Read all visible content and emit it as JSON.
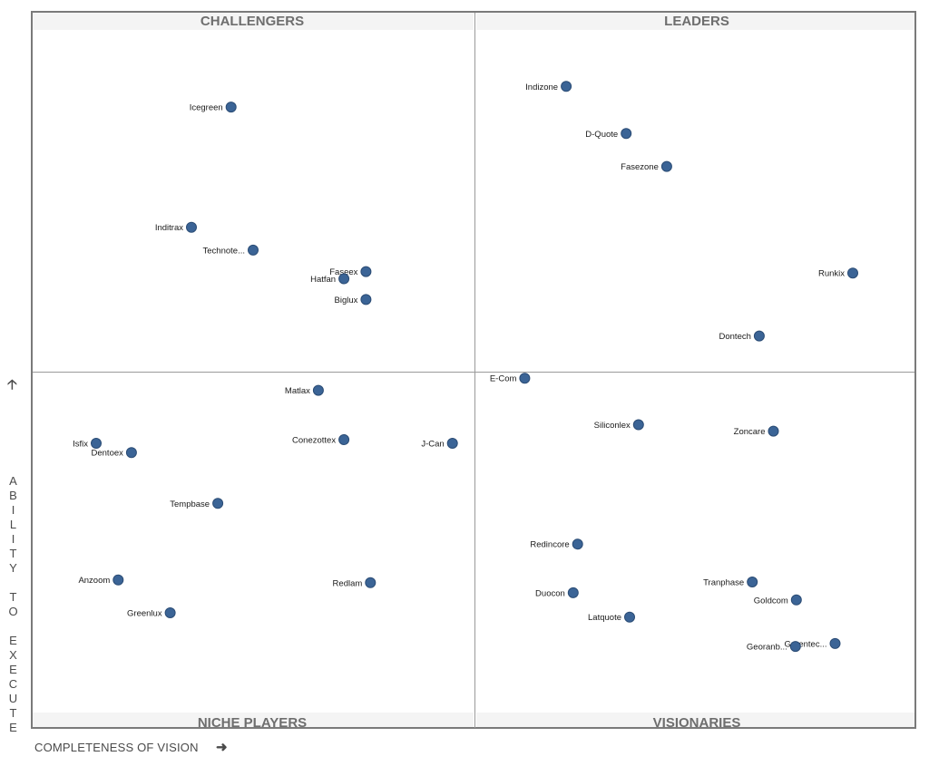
{
  "chart_data": {
    "type": "scatter",
    "quadrants": {
      "top_left": "CHALLENGERS",
      "top_right": "LEADERS",
      "bottom_left": "NICHE PLAYERS",
      "bottom_right": "VISIONARIES"
    },
    "xlabel": "COMPLETENESS OF VISION",
    "ylabel": "ABILITY TO EXECUTE",
    "xlim": [
      0,
      100
    ],
    "ylim": [
      0,
      100
    ],
    "grid": false,
    "colors": {
      "point": "#3b6496",
      "point_stroke": "#2b4c75",
      "frame": "#7a7a7a",
      "divider": "#9a9a9a",
      "title_band": "#f4f4f4"
    },
    "points": [
      {
        "name": "Icegreen",
        "x": 22.5,
        "y": 86.8
      },
      {
        "name": "Inditrax",
        "x": 18.0,
        "y": 70.0
      },
      {
        "name": "Technote...",
        "x": 25.0,
        "y": 66.8
      },
      {
        "name": "Faseex",
        "x": 37.8,
        "y": 63.8
      },
      {
        "name": "Hatfan",
        "x": 35.3,
        "y": 62.8
      },
      {
        "name": "Biglux",
        "x": 37.8,
        "y": 59.9
      },
      {
        "name": "Indizone",
        "x": 60.5,
        "y": 89.7
      },
      {
        "name": "D-Quote",
        "x": 67.3,
        "y": 83.1
      },
      {
        "name": "Fasezone",
        "x": 71.9,
        "y": 78.5
      },
      {
        "name": "Runkix",
        "x": 93.0,
        "y": 63.6
      },
      {
        "name": "Dontech",
        "x": 82.4,
        "y": 54.8
      },
      {
        "name": "Matlax",
        "x": 32.4,
        "y": 47.2
      },
      {
        "name": "Isfix",
        "x": 7.2,
        "y": 39.8
      },
      {
        "name": "Dentoex",
        "x": 11.2,
        "y": 38.5
      },
      {
        "name": "Conezottex",
        "x": 35.3,
        "y": 40.3
      },
      {
        "name": "J-Can",
        "x": 47.6,
        "y": 39.8
      },
      {
        "name": "Tempbase",
        "x": 21.0,
        "y": 31.4
      },
      {
        "name": "Anzoom",
        "x": 9.7,
        "y": 20.7
      },
      {
        "name": "Redlam",
        "x": 38.3,
        "y": 20.3
      },
      {
        "name": "Greenlux",
        "x": 15.6,
        "y": 16.1
      },
      {
        "name": "E-Com",
        "x": 55.8,
        "y": 48.9
      },
      {
        "name": "Siliconlex",
        "x": 68.7,
        "y": 42.4
      },
      {
        "name": "Zoncare",
        "x": 84.0,
        "y": 41.5
      },
      {
        "name": "Redincore",
        "x": 61.8,
        "y": 25.7
      },
      {
        "name": "Tranphase",
        "x": 81.6,
        "y": 20.4
      },
      {
        "name": "Duocon",
        "x": 61.3,
        "y": 18.9
      },
      {
        "name": "Goldcom",
        "x": 86.6,
        "y": 17.9
      },
      {
        "name": "Latquote",
        "x": 67.7,
        "y": 15.5
      },
      {
        "name": "Greentec...",
        "x": 91.0,
        "y": 11.8
      },
      {
        "name": "Georanb...",
        "x": 86.5,
        "y": 11.4
      }
    ]
  }
}
